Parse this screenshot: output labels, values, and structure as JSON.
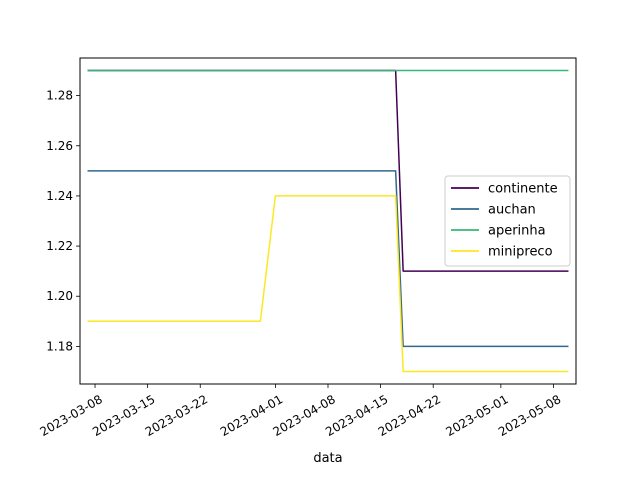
{
  "chart_data": {
    "type": "line",
    "title": "",
    "xlabel": "data",
    "ylabel": "",
    "x_type": "date",
    "xlim": [
      "2023-03-06",
      "2023-05-11"
    ],
    "ylim": [
      1.165,
      1.295
    ],
    "x_ticks": [
      "2023-03-08",
      "2023-03-15",
      "2023-03-22",
      "2023-04-01",
      "2023-04-08",
      "2023-04-15",
      "2023-04-22",
      "2023-05-01",
      "2023-05-08"
    ],
    "y_ticks": [
      "1.18",
      "1.20",
      "1.22",
      "1.24",
      "1.26",
      "1.28"
    ],
    "grid": false,
    "legend_position": "center-right",
    "series": [
      {
        "name": "continente",
        "color": "#440154",
        "points": [
          [
            "2023-03-07",
            1.29
          ],
          [
            "2023-04-17",
            1.29
          ],
          [
            "2023-04-18",
            1.21
          ],
          [
            "2023-05-10",
            1.21
          ]
        ]
      },
      {
        "name": "auchan",
        "color": "#31688e",
        "points": [
          [
            "2023-03-07",
            1.25
          ],
          [
            "2023-04-17",
            1.25
          ],
          [
            "2023-04-18",
            1.18
          ],
          [
            "2023-05-10",
            1.18
          ]
        ]
      },
      {
        "name": "aperinha",
        "color": "#35b779",
        "points": [
          [
            "2023-03-07",
            1.29
          ],
          [
            "2023-05-10",
            1.29
          ]
        ]
      },
      {
        "name": "minipreco",
        "color": "#fde725",
        "points": [
          [
            "2023-03-07",
            1.19
          ],
          [
            "2023-03-30",
            1.19
          ],
          [
            "2023-04-01",
            1.24
          ],
          [
            "2023-04-17",
            1.24
          ],
          [
            "2023-04-18",
            1.17
          ],
          [
            "2023-05-10",
            1.17
          ]
        ]
      }
    ]
  }
}
